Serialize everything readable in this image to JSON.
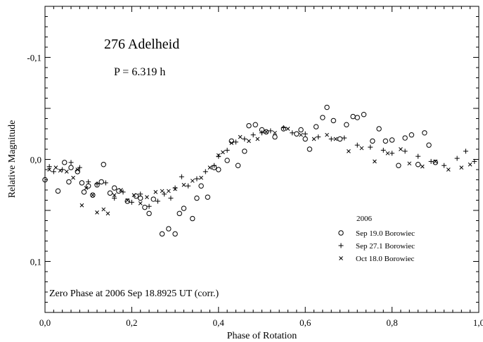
{
  "chart_data": {
    "type": "scatter",
    "title": "276 Adelheid",
    "subtitle": "P = 6.319 h",
    "xlabel": "Phase of Rotation",
    "ylabel": "Relative Magnitude",
    "xlim": [
      0.0,
      1.0
    ],
    "ylim": [
      0.15,
      -0.15
    ],
    "y_inverted": true,
    "x_ticks": [
      {
        "value": 0.0,
        "label": "0,0"
      },
      {
        "value": 0.2,
        "label": "0,2"
      },
      {
        "value": 0.4,
        "label": "0,4"
      },
      {
        "value": 0.6,
        "label": "0,6"
      },
      {
        "value": 0.8,
        "label": "0,8"
      },
      {
        "value": 1.0,
        "label": "1,0"
      }
    ],
    "y_ticks": [
      {
        "value": -0.1,
        "label": "-0,1"
      },
      {
        "value": 0.0,
        "label": "0,0"
      },
      {
        "value": 0.1,
        "label": "0,1"
      }
    ],
    "grid": false,
    "legend_title": "2006",
    "legend_placement": "bottom-right",
    "annotation": "Zero Phase at 2006 Sep 18.8925 UT (corr.)",
    "series": [
      {
        "name": "Sep 19.0 Borowiec",
        "marker": "circle",
        "points": [
          [
            0.0,
            0.02
          ],
          [
            0.03,
            0.031
          ],
          [
            0.045,
            0.003
          ],
          [
            0.055,
            0.022
          ],
          [
            0.06,
            0.008
          ],
          [
            0.075,
            0.012
          ],
          [
            0.085,
            0.023
          ],
          [
            0.09,
            0.032
          ],
          [
            0.1,
            0.026
          ],
          [
            0.11,
            0.035
          ],
          [
            0.12,
            0.025
          ],
          [
            0.13,
            0.022
          ],
          [
            0.135,
            0.005
          ],
          [
            0.15,
            0.033
          ],
          [
            0.16,
            0.028
          ],
          [
            0.17,
            0.031
          ],
          [
            0.19,
            0.041
          ],
          [
            0.21,
            0.036
          ],
          [
            0.22,
            0.038
          ],
          [
            0.23,
            0.047
          ],
          [
            0.24,
            0.053
          ],
          [
            0.25,
            0.039
          ],
          [
            0.27,
            0.073
          ],
          [
            0.285,
            0.068
          ],
          [
            0.3,
            0.073
          ],
          [
            0.31,
            0.053
          ],
          [
            0.32,
            0.048
          ],
          [
            0.34,
            0.058
          ],
          [
            0.35,
            0.038
          ],
          [
            0.36,
            0.026
          ],
          [
            0.375,
            0.037
          ],
          [
            0.39,
            0.008
          ],
          [
            0.4,
            0.01
          ],
          [
            0.42,
            0.001
          ],
          [
            0.43,
            -0.018
          ],
          [
            0.445,
            0.006
          ],
          [
            0.46,
            -0.008
          ],
          [
            0.47,
            -0.033
          ],
          [
            0.485,
            -0.034
          ],
          [
            0.5,
            -0.029
          ],
          [
            0.51,
            -0.027
          ],
          [
            0.53,
            -0.022
          ],
          [
            0.55,
            -0.03
          ],
          [
            0.58,
            -0.025
          ],
          [
            0.59,
            -0.029
          ],
          [
            0.6,
            -0.02
          ],
          [
            0.61,
            -0.01
          ],
          [
            0.625,
            -0.032
          ],
          [
            0.64,
            -0.041
          ],
          [
            0.65,
            -0.051
          ],
          [
            0.665,
            -0.038
          ],
          [
            0.68,
            -0.02
          ],
          [
            0.695,
            -0.034
          ],
          [
            0.71,
            -0.042
          ],
          [
            0.72,
            -0.041
          ],
          [
            0.735,
            -0.044
          ],
          [
            0.755,
            -0.018
          ],
          [
            0.77,
            -0.03
          ],
          [
            0.785,
            -0.018
          ],
          [
            0.8,
            -0.019
          ],
          [
            0.815,
            0.006
          ],
          [
            0.83,
            -0.021
          ],
          [
            0.845,
            -0.024
          ],
          [
            0.86,
            0.005
          ],
          [
            0.875,
            -0.026
          ],
          [
            0.885,
            -0.014
          ],
          [
            0.9,
            0.003
          ]
        ]
      },
      {
        "name": "Sep 27.1 Borowiec",
        "marker": "plus",
        "points": [
          [
            0.01,
            0.007
          ],
          [
            0.02,
            0.012
          ],
          [
            0.04,
            0.01
          ],
          [
            0.06,
            0.003
          ],
          [
            0.08,
            0.008
          ],
          [
            0.1,
            0.022
          ],
          [
            0.12,
            0.024
          ],
          [
            0.14,
            0.023
          ],
          [
            0.16,
            0.038
          ],
          [
            0.18,
            0.032
          ],
          [
            0.2,
            0.042
          ],
          [
            0.22,
            0.034
          ],
          [
            0.24,
            0.046
          ],
          [
            0.26,
            0.041
          ],
          [
            0.275,
            0.034
          ],
          [
            0.29,
            0.038
          ],
          [
            0.3,
            0.028
          ],
          [
            0.315,
            0.017
          ],
          [
            0.33,
            0.026
          ],
          [
            0.35,
            0.019
          ],
          [
            0.37,
            0.012
          ],
          [
            0.39,
            0.006
          ],
          [
            0.4,
            -0.003
          ],
          [
            0.42,
            -0.009
          ],
          [
            0.44,
            -0.017
          ],
          [
            0.46,
            -0.02
          ],
          [
            0.48,
            -0.024
          ],
          [
            0.5,
            -0.026
          ],
          [
            0.52,
            -0.028
          ],
          [
            0.55,
            -0.031
          ],
          [
            0.57,
            -0.026
          ],
          [
            0.6,
            -0.025
          ],
          [
            0.63,
            -0.022
          ],
          [
            0.66,
            -0.02
          ],
          [
            0.69,
            -0.021
          ],
          [
            0.72,
            -0.014
          ],
          [
            0.75,
            -0.012
          ],
          [
            0.78,
            -0.009
          ],
          [
            0.8,
            -0.006
          ],
          [
            0.83,
            -0.008
          ],
          [
            0.86,
            -0.003
          ],
          [
            0.89,
            0.002
          ],
          [
            0.92,
            0.006
          ],
          [
            0.95,
            -0.001
          ],
          [
            0.97,
            -0.008
          ],
          [
            0.99,
            0.002
          ]
        ]
      },
      {
        "name": "Oct 18.0 Borowiec",
        "marker": "cross",
        "points": [
          [
            0.01,
            0.01
          ],
          [
            0.025,
            0.008
          ],
          [
            0.035,
            0.011
          ],
          [
            0.05,
            0.012
          ],
          [
            0.065,
            0.018
          ],
          [
            0.075,
            0.01
          ],
          [
            0.085,
            0.045
          ],
          [
            0.095,
            0.028
          ],
          [
            0.11,
            0.035
          ],
          [
            0.12,
            0.052
          ],
          [
            0.135,
            0.049
          ],
          [
            0.145,
            0.053
          ],
          [
            0.16,
            0.035
          ],
          [
            0.175,
            0.03
          ],
          [
            0.19,
            0.04
          ],
          [
            0.205,
            0.035
          ],
          [
            0.22,
            0.043
          ],
          [
            0.235,
            0.037
          ],
          [
            0.255,
            0.032
          ],
          [
            0.27,
            0.031
          ],
          [
            0.285,
            0.031
          ],
          [
            0.3,
            0.029
          ],
          [
            0.32,
            0.025
          ],
          [
            0.34,
            0.021
          ],
          [
            0.36,
            0.018
          ],
          [
            0.38,
            0.008
          ],
          [
            0.4,
            -0.004
          ],
          [
            0.41,
            -0.007
          ],
          [
            0.43,
            -0.016
          ],
          [
            0.45,
            -0.022
          ],
          [
            0.47,
            -0.018
          ],
          [
            0.49,
            -0.02
          ],
          [
            0.51,
            -0.027
          ],
          [
            0.53,
            -0.026
          ],
          [
            0.56,
            -0.03
          ],
          [
            0.59,
            -0.024
          ],
          [
            0.62,
            -0.02
          ],
          [
            0.65,
            -0.024
          ],
          [
            0.67,
            -0.02
          ],
          [
            0.7,
            -0.008
          ],
          [
            0.73,
            -0.011
          ],
          [
            0.76,
            0.002
          ],
          [
            0.79,
            -0.006
          ],
          [
            0.82,
            -0.01
          ],
          [
            0.84,
            0.004
          ],
          [
            0.87,
            0.007
          ],
          [
            0.9,
            0.002
          ],
          [
            0.93,
            0.01
          ],
          [
            0.96,
            0.008
          ],
          [
            0.98,
            0.005
          ]
        ]
      }
    ]
  }
}
